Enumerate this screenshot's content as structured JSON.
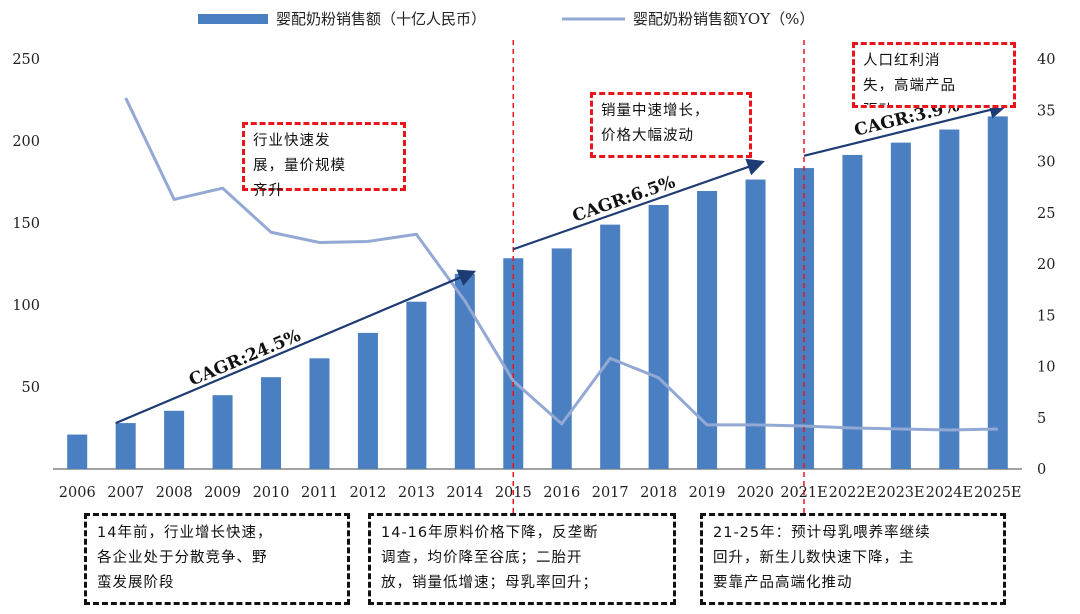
{
  "chart_data": {
    "type": "bar+line",
    "categories": [
      "2006",
      "2007",
      "2008",
      "2009",
      "2010",
      "2011",
      "2012",
      "2013",
      "2014",
      "2015",
      "2016",
      "2017",
      "2018",
      "2019",
      "2020",
      "2021E",
      "2022E",
      "2023E",
      "2024E",
      "2025E"
    ],
    "series": [
      {
        "name": "婴配奶粉销售额（十亿人民币）",
        "type": "bar",
        "axis": "left",
        "color": "#4a7fc1",
        "values": [
          21,
          28,
          35.5,
          45,
          56,
          67.5,
          83,
          102,
          119,
          128.5,
          134.5,
          149,
          161,
          169.5,
          176.5,
          183.5,
          191.5,
          199,
          207,
          215
        ]
      },
      {
        "name": "婴配奶粉销售额YOY（%）",
        "type": "line",
        "axis": "right",
        "color": "#93a9d4",
        "values": [
          null,
          36.2,
          26.3,
          27.4,
          23.1,
          22.1,
          22.2,
          22.9,
          16.4,
          8.6,
          4.4,
          10.8,
          8.9,
          4.3,
          4.3,
          4.2,
          4.0,
          3.9,
          3.8,
          3.9
        ]
      }
    ],
    "y_left": {
      "min": 0,
      "max": 250,
      "ticks": [
        "50",
        "100",
        "150",
        "200",
        "250"
      ]
    },
    "y_right": {
      "min": 0,
      "max": 40,
      "ticks": [
        "0",
        "5",
        "10",
        "15",
        "20",
        "25",
        "30",
        "35",
        "40"
      ]
    },
    "legend": [
      {
        "label": "婴配奶粉销售额（十亿人民币）",
        "kind": "bar"
      },
      {
        "label": "婴配奶粉销售额YOY（%）",
        "kind": "line"
      }
    ],
    "trend_arrows": [
      {
        "label": "CAGR:24.5%",
        "from": "2007",
        "to": "2014",
        "y_from": 28,
        "y_to": 120
      },
      {
        "label": "CAGR:6.5%",
        "from": "2015",
        "to": "2020",
        "y_from": 134,
        "y_to": 187
      },
      {
        "label": "CAGR:3.9%",
        "from": "2021E",
        "to": "2025E",
        "y_from": 191,
        "y_to": 221
      }
    ],
    "period_dividers": [
      "2015",
      "2021E"
    ],
    "annotations": {
      "phase1": "行业快速发\n展，量价规模\n齐升",
      "phase2": "销量中速增长，\n价格大幅波动",
      "phase3": "人口红利消\n失，高端产品\n驱动",
      "note1": "14年前，行业增长快速，\n各企业处于分散竞争、野\n蛮发展阶段",
      "note2": "14-16年原料价格下降，反垄断\n调查，均价降至谷底；二胎开\n放，销量低增速；母乳率回升；",
      "note3": "21-25年：预计母乳喂养率继续\n回升，新生儿数快速下降，主\n要靠产品高端化推动"
    }
  }
}
